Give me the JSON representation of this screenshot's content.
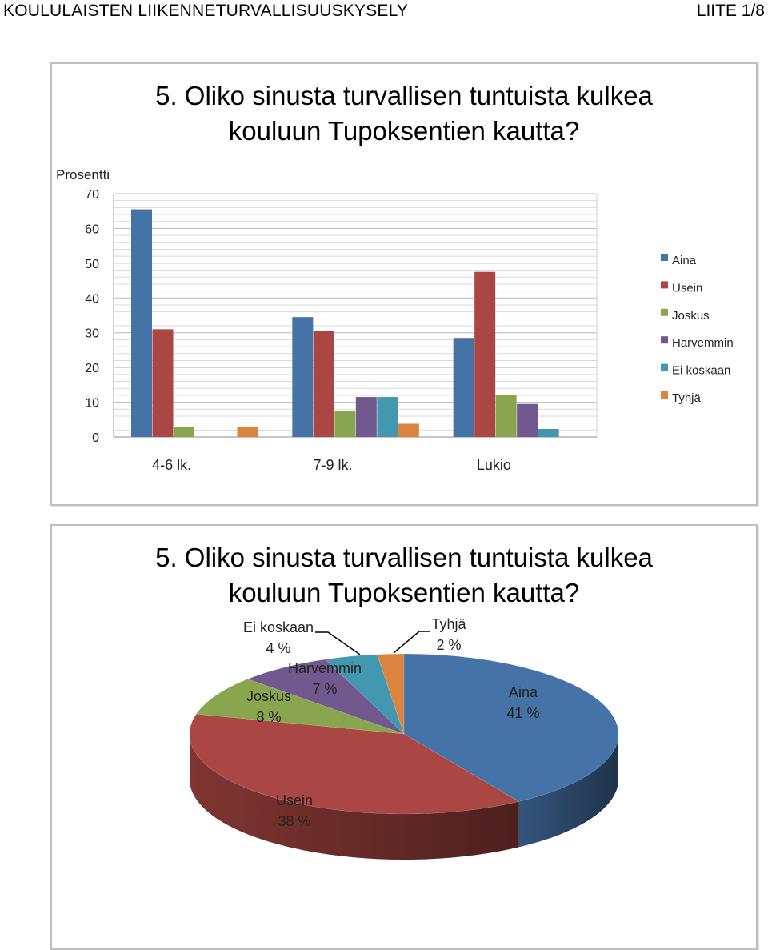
{
  "header": {
    "left": "KOULULAISTEN LIIKENNETURVALLISUUSKYSELY",
    "right": "LIITE 1/8"
  },
  "chart_data": [
    {
      "type": "bar",
      "title_line1": "5. Oliko sinusta turvallisen tuntuista kulkea",
      "title_line2": "kouluun Tupoksentien kautta?",
      "ylabel": "Prosentti",
      "ylim": [
        0,
        70
      ],
      "yticks": [
        "0",
        "10",
        "20",
        "30",
        "40",
        "50",
        "60",
        "70"
      ],
      "grid": true,
      "legend_position": "right",
      "categories": [
        "4-6 lk.",
        "7-9 lk.",
        "Lukio"
      ],
      "series": [
        {
          "name": "Aina",
          "color": "#4572a7",
          "values": [
            65.5,
            34.5,
            28.5
          ]
        },
        {
          "name": "Usein",
          "color": "#aa4643",
          "values": [
            31,
            30.5,
            47.5
          ]
        },
        {
          "name": "Joskus",
          "color": "#89a54e",
          "values": [
            3,
            7.5,
            12
          ]
        },
        {
          "name": "Harvemmin",
          "color": "#71588f",
          "values": [
            0,
            11.5,
            9.5
          ]
        },
        {
          "name": "Ei koskaan",
          "color": "#4198af",
          "values": [
            0,
            11.5,
            2.3
          ]
        },
        {
          "name": "Tyhjä",
          "color": "#db843d",
          "values": [
            3,
            3.8,
            0
          ]
        }
      ]
    },
    {
      "type": "pie",
      "title_line1": "5. Oliko sinusta turvallisen tuntuista kulkea",
      "title_line2": "kouluun Tupoksentien kautta?",
      "slices": [
        {
          "name": "Aina",
          "value": 41,
          "label": "41 %",
          "color": "#4572a7"
        },
        {
          "name": "Usein",
          "value": 38,
          "label": "38 %",
          "color": "#aa4643"
        },
        {
          "name": "Joskus",
          "value": 8,
          "label": "8 %",
          "color": "#89a54e"
        },
        {
          "name": "Harvemmin",
          "value": 7,
          "label": "7 %",
          "color": "#71588f"
        },
        {
          "name": "Ei koskaan",
          "value": 4,
          "label": "4 %",
          "color": "#4198af"
        },
        {
          "name": "Tyhjä",
          "value": 2,
          "label": "2 %",
          "color": "#db843d"
        }
      ]
    }
  ]
}
